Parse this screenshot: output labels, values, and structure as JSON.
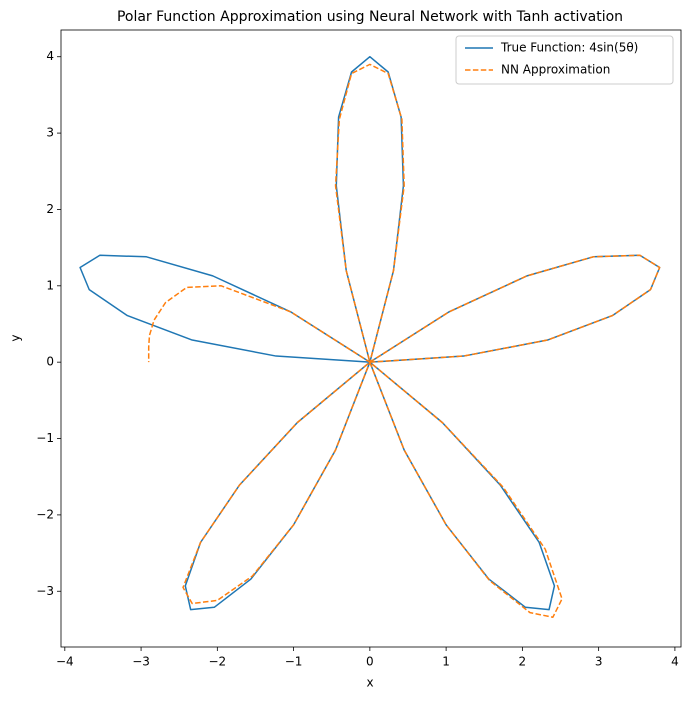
{
  "chart_data": {
    "type": "line",
    "title": "Polar Function Approximation using Neural Network with Tanh activation",
    "xlabel": "x",
    "ylabel": "y",
    "xlim": [
      -4.05,
      4.08
    ],
    "ylim": [
      -3.73,
      4.35
    ],
    "xticks": [
      {
        "value": -4,
        "label": "−4"
      },
      {
        "value": -3,
        "label": "−3"
      },
      {
        "value": -2,
        "label": "−2"
      },
      {
        "value": -1,
        "label": "−1"
      },
      0,
      1,
      2,
      3,
      4
    ],
    "yticks": [
      {
        "value": -3,
        "label": "−3"
      },
      {
        "value": -2,
        "label": "−2"
      },
      {
        "value": -1,
        "label": "−1"
      },
      0,
      1,
      2,
      3,
      4
    ],
    "legend": "upper right",
    "series": [
      {
        "name": "True Function: 4sin(5θ)",
        "color": "#1f77b4",
        "linestyle": "solid",
        "x": [
          0,
          1.23,
          2.33,
          3.18,
          3.68,
          3.8,
          3.54,
          2.93,
          2.06,
          1.04,
          0,
          -0.95,
          -1.71,
          -2.22,
          -2.42,
          -2.35,
          -2.04,
          -1.56,
          -1.0,
          -0.45,
          0,
          0.31,
          0.44,
          0.41,
          0.24,
          0,
          -0.24,
          -0.41,
          -0.44,
          -0.31,
          0,
          0.45,
          1.0,
          1.56,
          2.04,
          2.35,
          2.42,
          2.22,
          1.71,
          0.95,
          0,
          -1.04,
          -2.06,
          -2.93,
          -3.54,
          -3.8,
          -3.68,
          -3.18,
          -2.33,
          -1.23,
          0
        ],
        "y": [
          0,
          0.08,
          0.29,
          0.61,
          0.95,
          1.24,
          1.4,
          1.38,
          1.13,
          0.66,
          0,
          -0.79,
          -1.61,
          -2.36,
          -2.93,
          -3.24,
          -3.21,
          -2.84,
          -2.13,
          -1.15,
          0,
          1.2,
          2.31,
          3.21,
          3.8,
          4,
          3.8,
          3.21,
          2.31,
          1.2,
          0,
          -1.15,
          -2.13,
          -2.84,
          -3.21,
          -3.24,
          -2.93,
          -2.36,
          -1.61,
          -0.79,
          0,
          0.66,
          1.13,
          1.38,
          1.4,
          1.24,
          0.95,
          0.61,
          0.29,
          0.08,
          0
        ]
      },
      {
        "name": "NN Approximation",
        "color": "#ff7f0e",
        "linestyle": "dashed",
        "x": [
          0,
          1.23,
          2.33,
          3.18,
          3.68,
          3.8,
          3.54,
          2.93,
          2.06,
          1.04,
          0,
          -0.95,
          -1.71,
          -2.22,
          -2.45,
          -2.33,
          -2.0,
          -1.54,
          -1.0,
          -0.45,
          0,
          0.31,
          0.45,
          0.42,
          0.24,
          0,
          -0.24,
          -0.4,
          -0.45,
          -0.31,
          0,
          0.45,
          1.0,
          1.57,
          2.1,
          2.4,
          2.52,
          2.3,
          1.75,
          0.96,
          0,
          -1.04,
          -1.95,
          -2.4,
          -2.68,
          -2.83,
          -2.89,
          -2.9,
          -2.9,
          -2.9,
          -2.9
        ],
        "y": [
          0,
          0.08,
          0.29,
          0.61,
          0.95,
          1.24,
          1.4,
          1.38,
          1.13,
          0.66,
          0,
          -0.79,
          -1.61,
          -2.36,
          -2.95,
          -3.16,
          -3.12,
          -2.8,
          -2.13,
          -1.15,
          0,
          1.2,
          2.31,
          3.18,
          3.78,
          3.9,
          3.78,
          3.18,
          2.31,
          1.2,
          0,
          -1.15,
          -2.13,
          -2.86,
          -3.28,
          -3.34,
          -3.1,
          -2.45,
          -1.64,
          -0.8,
          0,
          0.66,
          1.0,
          0.98,
          0.78,
          0.55,
          0.35,
          0.2,
          0.1,
          0.04,
          0
        ]
      }
    ]
  }
}
